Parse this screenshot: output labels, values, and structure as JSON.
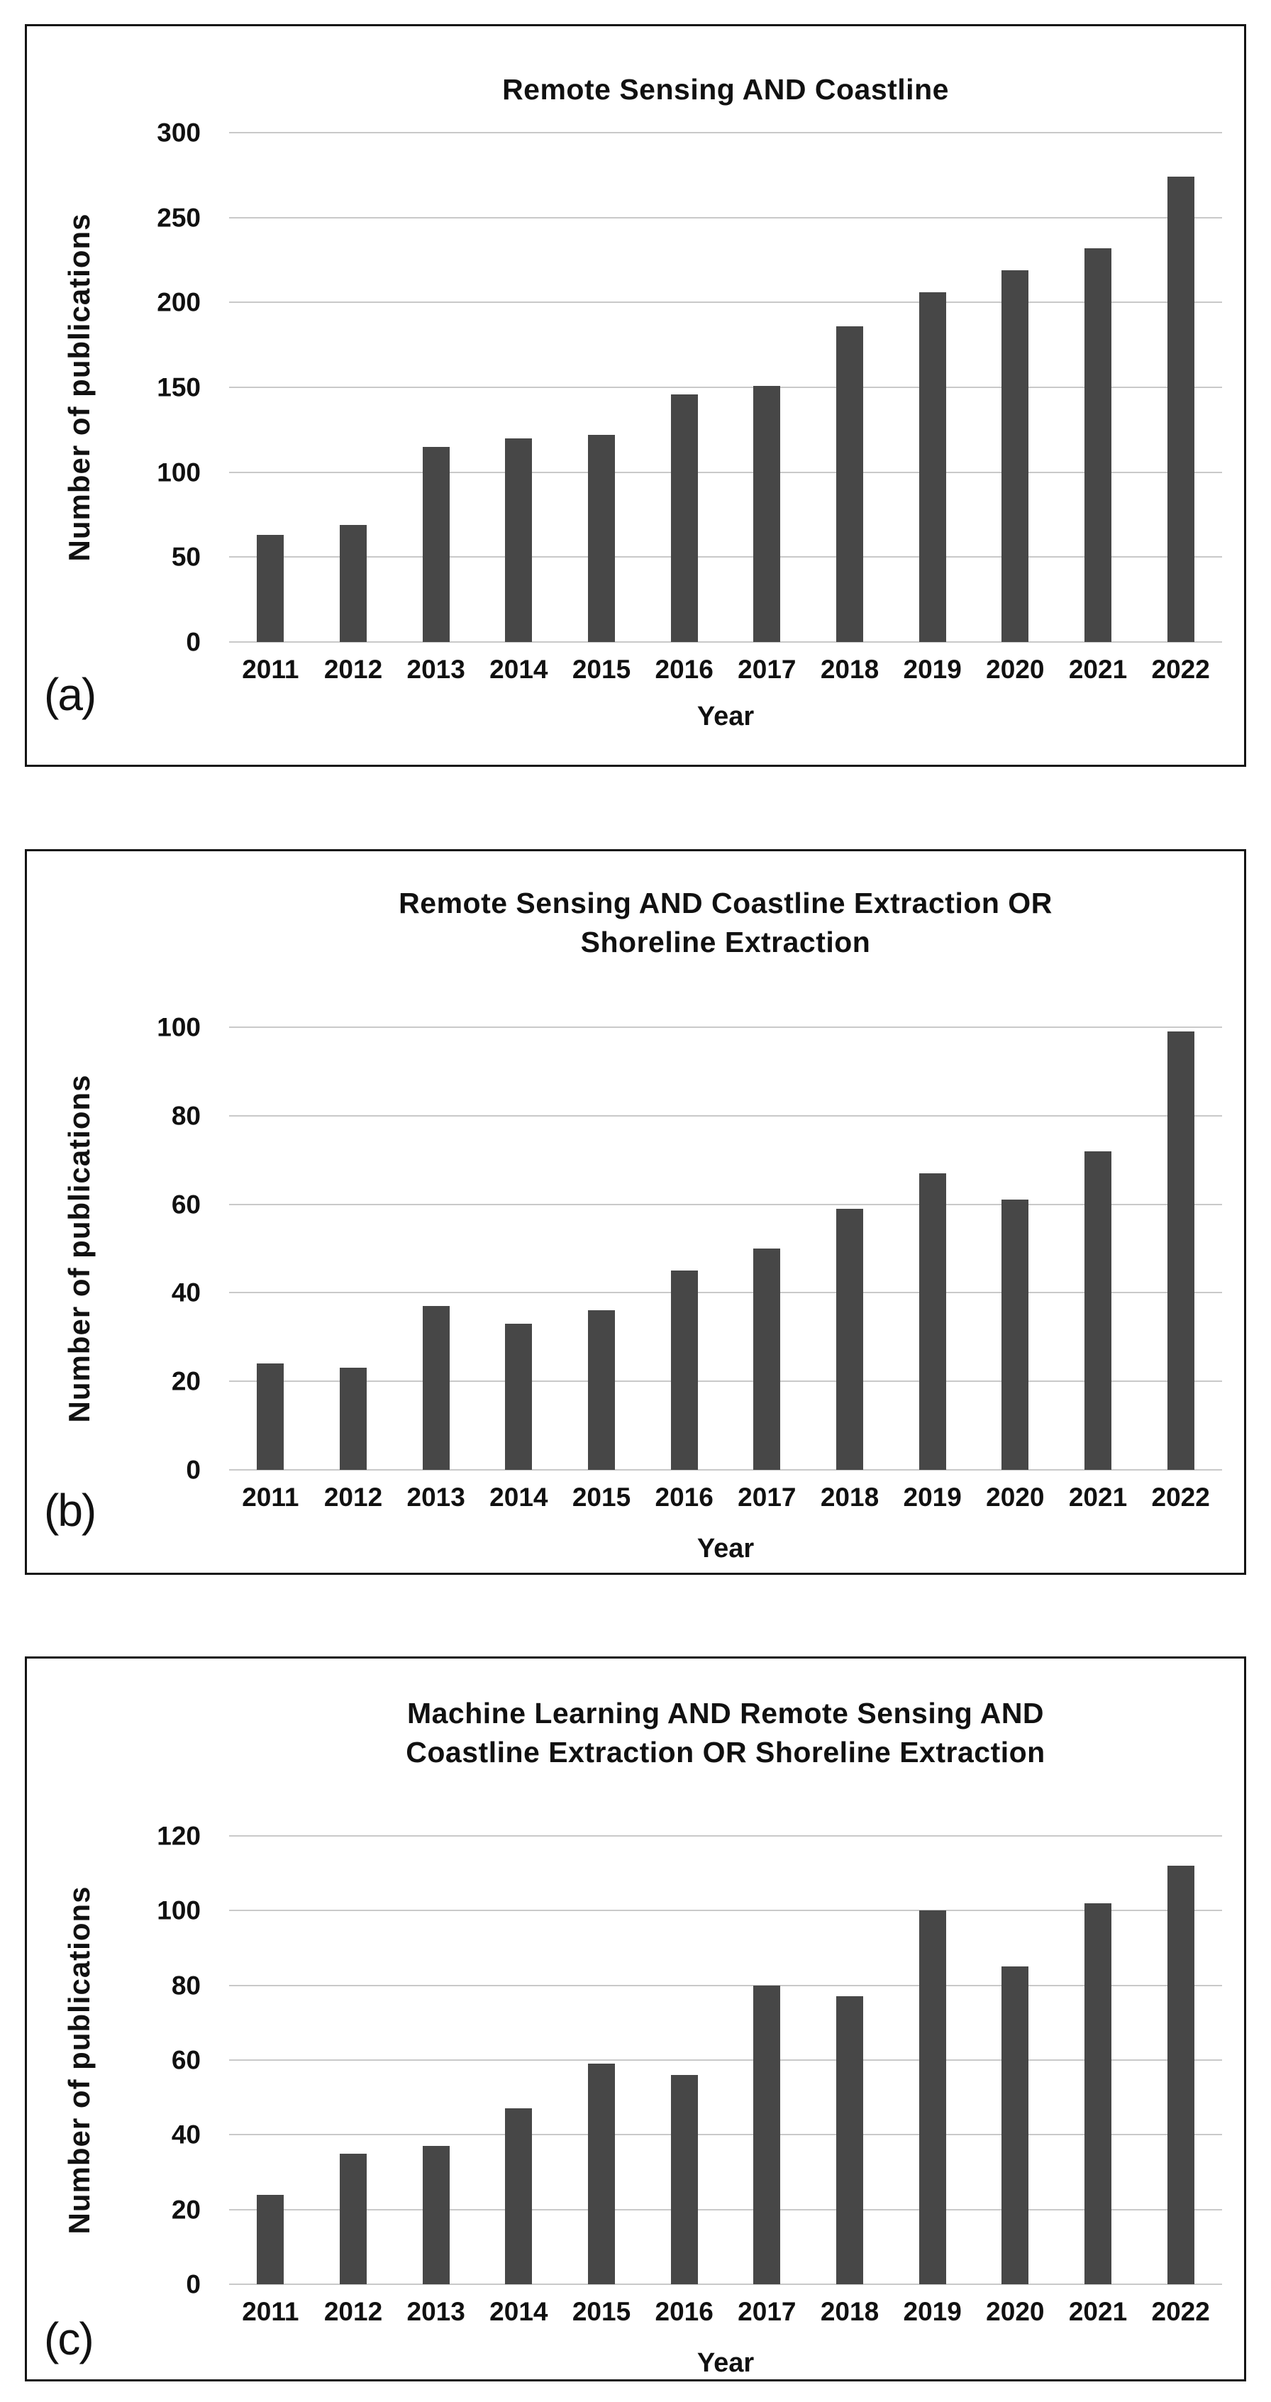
{
  "figure": {
    "background": "#ffffff",
    "bar_color": "#474747",
    "gridline_color": "#c9c9c9",
    "border_color": "#141414",
    "text_color": "#111111"
  },
  "chart_data": [
    {
      "type": "bar",
      "panel_label": "(a)",
      "title": "Remote Sensing AND Coastline",
      "xlabel": "Year",
      "ylabel": "Number of publications",
      "categories": [
        "2011",
        "2012",
        "2013",
        "2014",
        "2015",
        "2016",
        "2017",
        "2018",
        "2019",
        "2020",
        "2021",
        "2022"
      ],
      "values": [
        63,
        69,
        115,
        120,
        122,
        146,
        151,
        186,
        206,
        219,
        232,
        274
      ],
      "ylim": [
        0,
        300
      ],
      "ytick_step": 50,
      "yticks": [
        0,
        50,
        100,
        150,
        200,
        250,
        300
      ],
      "grid": true,
      "legend": "none"
    },
    {
      "type": "bar",
      "panel_label": "(b)",
      "title": "Remote Sensing AND Coastline Extraction OR\nShoreline Extraction",
      "xlabel": "Year",
      "ylabel": "Number of publications",
      "categories": [
        "2011",
        "2012",
        "2013",
        "2014",
        "2015",
        "2016",
        "2017",
        "2018",
        "2019",
        "2020",
        "2021",
        "2022"
      ],
      "values": [
        24,
        23,
        37,
        33,
        36,
        45,
        50,
        59,
        67,
        61,
        72,
        99
      ],
      "ylim": [
        0,
        100
      ],
      "ytick_step": 20,
      "yticks": [
        0,
        20,
        40,
        60,
        80,
        100
      ],
      "grid": true,
      "legend": "none"
    },
    {
      "type": "bar",
      "panel_label": "(c)",
      "title": "Machine Learning AND Remote Sensing AND\nCoastline Extraction OR Shoreline Extraction",
      "xlabel": "Year",
      "ylabel": "Number of publications",
      "categories": [
        "2011",
        "2012",
        "2013",
        "2014",
        "2015",
        "2016",
        "2017",
        "2018",
        "2019",
        "2020",
        "2021",
        "2022"
      ],
      "values": [
        24,
        35,
        37,
        47,
        59,
        56,
        80,
        77,
        100,
        85,
        102,
        112
      ],
      "ylim": [
        0,
        120
      ],
      "ytick_step": 20,
      "yticks": [
        0,
        20,
        40,
        60,
        80,
        100,
        120
      ],
      "grid": true,
      "legend": "none"
    }
  ]
}
